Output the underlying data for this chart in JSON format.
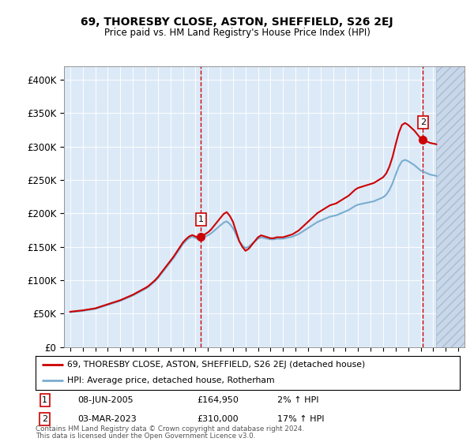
{
  "title": "69, THORESBY CLOSE, ASTON, SHEFFIELD, S26 2EJ",
  "subtitle": "Price paid vs. HM Land Registry's House Price Index (HPI)",
  "background_color": "#dce9f7",
  "ylim": [
    0,
    420000
  ],
  "yticks": [
    0,
    50000,
    100000,
    150000,
    200000,
    250000,
    300000,
    350000,
    400000
  ],
  "ytick_labels": [
    "£0",
    "£50K",
    "£100K",
    "£150K",
    "£200K",
    "£250K",
    "£300K",
    "£350K",
    "£400K"
  ],
  "xlim_start": 1994.5,
  "xlim_end": 2026.5,
  "xticks": [
    1995,
    1996,
    1997,
    1998,
    1999,
    2000,
    2001,
    2002,
    2003,
    2004,
    2005,
    2006,
    2007,
    2008,
    2009,
    2010,
    2011,
    2012,
    2013,
    2014,
    2015,
    2016,
    2017,
    2018,
    2019,
    2020,
    2021,
    2022,
    2023,
    2024,
    2025,
    2026
  ],
  "sale1_x": 2005.44,
  "sale1_y": 164950,
  "sale1_label": "1",
  "sale1_date": "08-JUN-2005",
  "sale1_price": "£164,950",
  "sale1_hpi": "2% ↑ HPI",
  "sale2_x": 2023.17,
  "sale2_y": 310000,
  "sale2_label": "2",
  "sale2_date": "03-MAR-2023",
  "sale2_price": "£310,000",
  "sale2_hpi": "17% ↑ HPI",
  "red_line_color": "#cc0000",
  "blue_line_color": "#7aadcf",
  "legend_label1": "69, THORESBY CLOSE, ASTON, SHEFFIELD, S26 2EJ (detached house)",
  "legend_label2": "HPI: Average price, detached house, Rotherham",
  "footer1": "Contains HM Land Registry data © Crown copyright and database right 2024.",
  "footer2": "This data is licensed under the Open Government Licence v3.0.",
  "hpi_years": [
    1995.0,
    1995.25,
    1995.5,
    1995.75,
    1996.0,
    1996.25,
    1996.5,
    1996.75,
    1997.0,
    1997.25,
    1997.5,
    1997.75,
    1998.0,
    1998.25,
    1998.5,
    1998.75,
    1999.0,
    1999.25,
    1999.5,
    1999.75,
    2000.0,
    2000.25,
    2000.5,
    2000.75,
    2001.0,
    2001.25,
    2001.5,
    2001.75,
    2002.0,
    2002.25,
    2002.5,
    2002.75,
    2003.0,
    2003.25,
    2003.5,
    2003.75,
    2004.0,
    2004.25,
    2004.5,
    2004.75,
    2005.0,
    2005.25,
    2005.5,
    2005.75,
    2006.0,
    2006.25,
    2006.5,
    2006.75,
    2007.0,
    2007.25,
    2007.5,
    2007.75,
    2008.0,
    2008.25,
    2008.5,
    2008.75,
    2009.0,
    2009.25,
    2009.5,
    2009.75,
    2010.0,
    2010.25,
    2010.5,
    2010.75,
    2011.0,
    2011.25,
    2011.5,
    2011.75,
    2012.0,
    2012.25,
    2012.5,
    2012.75,
    2013.0,
    2013.25,
    2013.5,
    2013.75,
    2014.0,
    2014.25,
    2014.5,
    2014.75,
    2015.0,
    2015.25,
    2015.5,
    2015.75,
    2016.0,
    2016.25,
    2016.5,
    2016.75,
    2017.0,
    2017.25,
    2017.5,
    2017.75,
    2018.0,
    2018.25,
    2018.5,
    2018.75,
    2019.0,
    2019.25,
    2019.5,
    2019.75,
    2020.0,
    2020.25,
    2020.5,
    2020.75,
    2021.0,
    2021.25,
    2021.5,
    2021.75,
    2022.0,
    2022.25,
    2022.5,
    2022.75,
    2023.0,
    2023.25,
    2023.5,
    2023.75,
    2024.0,
    2024.25
  ],
  "hpi_values": [
    52000,
    52500,
    53000,
    53500,
    54000,
    54800,
    55500,
    56200,
    57000,
    58500,
    60000,
    61500,
    63000,
    64500,
    66000,
    67500,
    69000,
    71000,
    73000,
    75000,
    77000,
    79500,
    82000,
    84500,
    87000,
    90000,
    94000,
    98000,
    103000,
    109000,
    115000,
    121000,
    127000,
    133000,
    140000,
    147000,
    154000,
    159000,
    163000,
    165000,
    163000,
    161000,
    163000,
    165000,
    167000,
    170000,
    174000,
    178000,
    182000,
    186000,
    188000,
    184000,
    178000,
    168000,
    158000,
    152000,
    148000,
    150000,
    154000,
    158000,
    162000,
    164000,
    163000,
    162000,
    161000,
    161000,
    162000,
    162000,
    162000,
    163000,
    164000,
    165000,
    167000,
    169000,
    172000,
    175000,
    178000,
    181000,
    184000,
    187000,
    189000,
    191000,
    193000,
    195000,
    196000,
    197000,
    199000,
    201000,
    203000,
    205000,
    208000,
    211000,
    213000,
    214000,
    215000,
    216000,
    217000,
    218000,
    220000,
    222000,
    224000,
    228000,
    235000,
    245000,
    258000,
    270000,
    278000,
    280000,
    278000,
    275000,
    272000,
    268000,
    264000,
    262000,
    260000,
    258000,
    257000,
    256000
  ]
}
